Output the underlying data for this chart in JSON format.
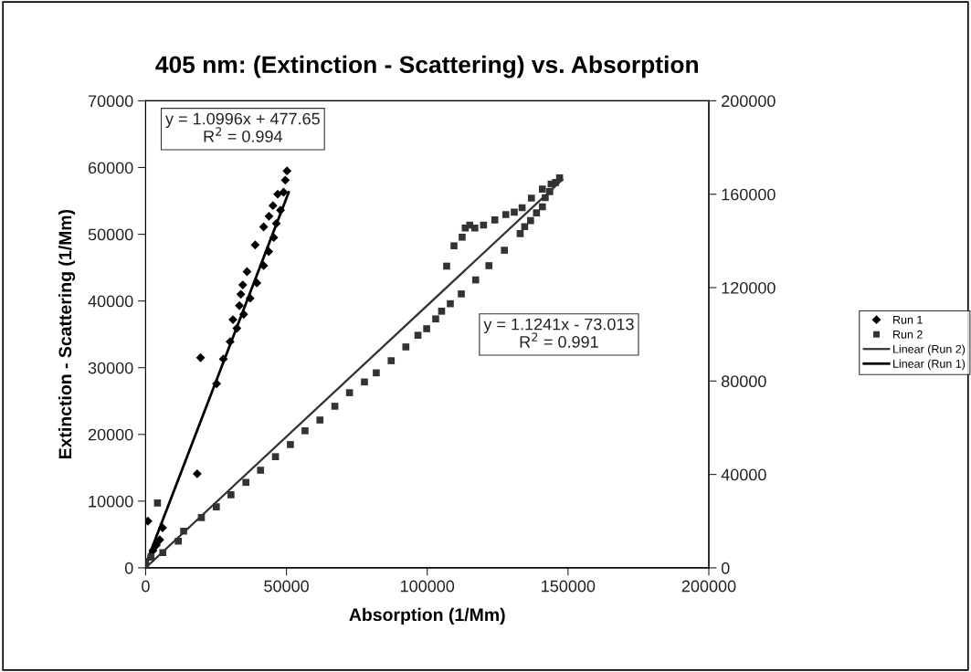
{
  "chart_data": {
    "type": "scatter",
    "title": "405 nm: (Extinction - Scattering) vs. Absorption",
    "xlabel": "Absorption (1/Mm)",
    "ylabel": "Extinction - Scattering (1/Mm)",
    "xlim": [
      0,
      200000
    ],
    "xticks": [
      0,
      50000,
      100000,
      150000,
      200000
    ],
    "ylim": [
      0,
      70000
    ],
    "yticks": [
      0,
      10000,
      20000,
      30000,
      40000,
      50000,
      60000,
      70000
    ],
    "y2lim": [
      0,
      200000
    ],
    "y2ticks": [
      0,
      40000,
      80000,
      120000,
      160000,
      200000
    ],
    "legend": "right",
    "annotations": [
      "y = 1.0996x + 477.65\nR$^{2}$ = 0.994",
      "y = 1.1241x - 73.013\nR$^{2}$ = 0.991"
    ],
    "series": [
      {
        "name": "Run 1",
        "marker": "diamond",
        "color": "#000000",
        "x": [
          2600,
          3800,
          5000,
          6000,
          800,
          18300,
          19500,
          25200,
          27600,
          30000,
          31000,
          32400,
          33300,
          33800,
          34500,
          34800,
          36000,
          37100,
          38900,
          39500,
          41900,
          41900,
          43700,
          43800,
          45200,
          45500,
          46400,
          46900,
          47900,
          49000,
          49600,
          50200
        ],
        "values": [
          2600,
          3400,
          4200,
          6000,
          7000,
          14100,
          31500,
          27600,
          31300,
          33900,
          37200,
          35900,
          39300,
          41000,
          42400,
          38000,
          44400,
          40400,
          48400,
          42700,
          45300,
          51100,
          47400,
          52700,
          54300,
          49500,
          51600,
          56000,
          53600,
          56300,
          58100,
          59500
        ]
      },
      {
        "name": "Run 2",
        "marker": "square",
        "color": "#333333",
        "axis": "y2",
        "x": [
          0,
          1900,
          4200,
          6100,
          11600,
          13500,
          19800,
          25100,
          30300,
          35600,
          40800,
          46100,
          51400,
          56600,
          61900,
          67200,
          72400,
          77700,
          81900,
          87200,
          92400,
          96700,
          99800,
          103000,
          105100,
          106900,
          108200,
          109500,
          112100,
          112400,
          113500,
          115100,
          116900,
          117200,
          120000,
          121900,
          124000,
          127400,
          127900,
          130900,
          133000,
          133700,
          134600,
          136700,
          137000,
          138800,
          140900,
          140900,
          141900,
          143500,
          144000,
          145600,
          147000
        ],
        "values": [
          2000,
          4600,
          27800,
          6500,
          11400,
          15700,
          21500,
          26100,
          31300,
          36600,
          41800,
          47600,
          52800,
          58700,
          63300,
          69200,
          75000,
          79600,
          83500,
          88700,
          94600,
          99600,
          102400,
          106600,
          109900,
          129200,
          113100,
          137900,
          117300,
          141600,
          145500,
          146800,
          145500,
          123300,
          146800,
          129400,
          149000,
          136000,
          151300,
          152300,
          143100,
          154200,
          146100,
          148700,
          158300,
          152000,
          154600,
          162200,
          158500,
          161100,
          164400,
          165000,
          167000
        ]
      },
      {
        "name": "Linear (Run 2)",
        "type": "line",
        "line_style": "solid",
        "marker": "none",
        "color": "#333333",
        "axis": "y2",
        "x": [
          0,
          148000
        ],
        "values": [
          0,
          166300
        ]
      },
      {
        "name": "Linear (Run 1)",
        "type": "line",
        "line_style": "solid",
        "marker": "none",
        "color": "#000000",
        "x": [
          0,
          50800
        ],
        "values": [
          500,
          56300
        ]
      }
    ]
  }
}
